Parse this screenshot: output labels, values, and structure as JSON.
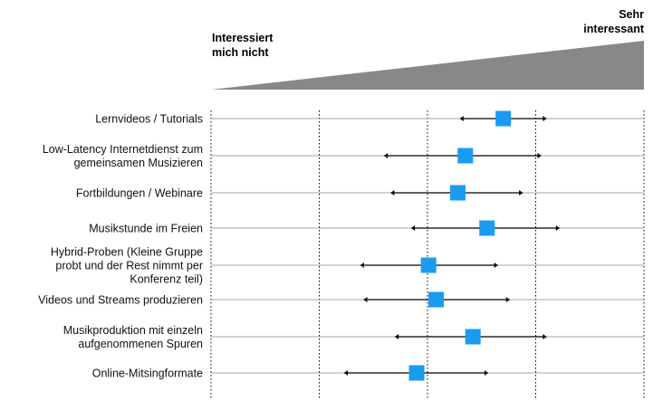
{
  "chart_data": {
    "type": "scatter",
    "title": "",
    "xlabel": "",
    "ylabel": "",
    "scale_low_label": [
      "Interessiert",
      "mich nicht"
    ],
    "scale_high_label": [
      "Sehr",
      "interessant"
    ],
    "xlim": [
      1,
      5
    ],
    "grid_x": [
      2,
      3,
      4
    ],
    "grid_style": "dotted",
    "colors": {
      "mean": "#1a9bf0",
      "error_bar": "#000000",
      "wedge": "#888888"
    },
    "rows": [
      {
        "label": [
          "Lernvideos / Tutorials"
        ],
        "mean": 3.7,
        "low": 3.3,
        "high": 4.1
      },
      {
        "label": [
          "Low-Latency Internetdienst zum",
          "gemeinsamen Musizieren"
        ],
        "mean": 3.35,
        "low": 2.6,
        "high": 4.05
      },
      {
        "label": [
          "Fortbildungen / Webinare"
        ],
        "mean": 3.28,
        "low": 2.66,
        "high": 3.88
      },
      {
        "label": [
          "Musikstunde im Freien"
        ],
        "mean": 3.55,
        "low": 2.85,
        "high": 4.22
      },
      {
        "label": [
          "Hybrid-Proben (Kleine Gruppe",
          "probt und der Rest nimmt per",
          "Konferenz teil)"
        ],
        "mean": 3.01,
        "low": 2.38,
        "high": 3.65
      },
      {
        "label": [
          "Videos und Streams produzieren"
        ],
        "mean": 3.08,
        "low": 2.41,
        "high": 3.76
      },
      {
        "label": [
          "Musikproduktion mit einzeln",
          "aufgenommenen Spuren"
        ],
        "mean": 3.42,
        "low": 2.7,
        "high": 4.1
      },
      {
        "label": [
          "Online-Mitsingformate"
        ],
        "mean": 2.9,
        "low": 2.23,
        "high": 3.56
      }
    ]
  }
}
